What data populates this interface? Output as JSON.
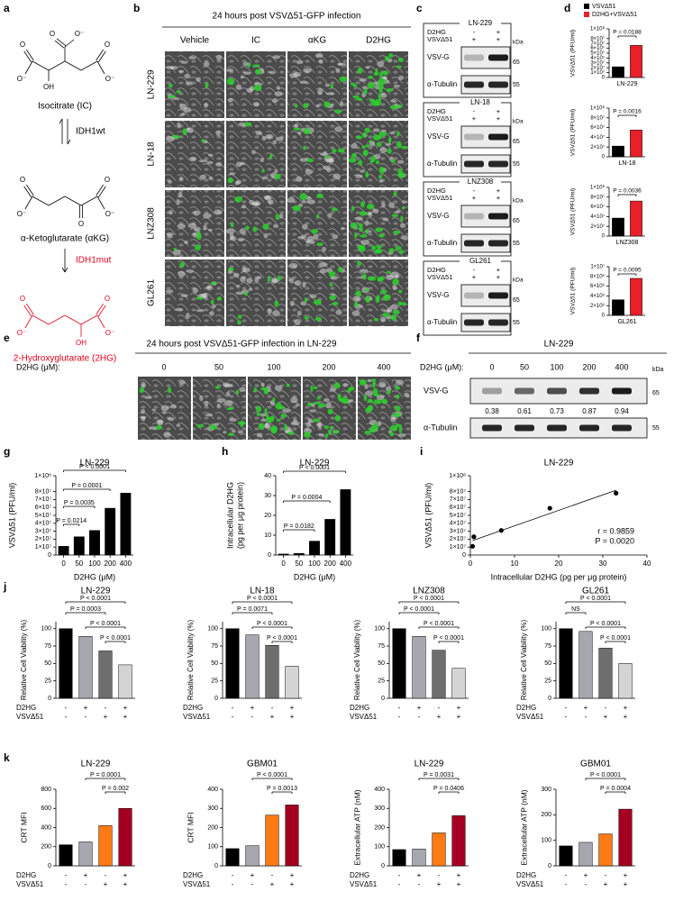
{
  "panel_labels": [
    "a",
    "b",
    "c",
    "d",
    "e",
    "f",
    "g",
    "h",
    "i",
    "j",
    "k"
  ],
  "pathway": {
    "compounds": [
      "Isocitrate (IC)",
      "α-Ketoglutarate (αKG)",
      "2-Hydroxyglutarate (2HG)"
    ],
    "enzymes": [
      "IDH1wt",
      "IDH1mut"
    ],
    "atoms": {
      "o": "O",
      "o_minus": "O⁻",
      "oh": "OH"
    }
  },
  "micrographs": {
    "title": "24 hours post VSVΔ51-GFP infection",
    "columns": [
      "Vehicle",
      "IC",
      "αKG",
      "D2HG"
    ],
    "rows": [
      "LN-229",
      "LN-18",
      "LNZ308",
      "GL261"
    ]
  },
  "blots_c": {
    "cell_lines": [
      "LN-229",
      "LN-18",
      "LNZ308",
      "GL261"
    ],
    "treatments": [
      "D2HG",
      "VSVΔ51"
    ],
    "signs": [
      [
        "-",
        "+"
      ],
      [
        "+",
        "+"
      ]
    ],
    "bands": [
      "VSV-G",
      "α-Tubulin"
    ],
    "kda": "kDa",
    "markers": [
      "65",
      "55"
    ]
  },
  "legend_d": [
    {
      "name": "VSVΔ51",
      "color": "#000000"
    },
    {
      "name": "D2HG+VSVΔ51",
      "color": "#e8202a"
    }
  ],
  "dose_images": {
    "title": "24 hours post VSVΔ51-GFP infection in LN-229",
    "dose_label": "D2HG (μM):",
    "doses": [
      0,
      50,
      100,
      200,
      400
    ]
  },
  "blot_f": {
    "title": "LN-229",
    "dose_label": "D2HG (μM):",
    "doses": [
      0,
      50,
      100,
      200,
      400
    ],
    "kda": "kDa",
    "bands": [
      "VSV-G",
      "α-Tubulin"
    ],
    "markers": [
      "65",
      "55"
    ],
    "ratios": [
      0.38,
      0.61,
      0.73,
      0.87,
      0.94
    ]
  },
  "chart_data": [
    {
      "type": "bar",
      "xlabel": "LN-229",
      "ylabel": "VSVΔ51 (PFU/ml)",
      "values": [
        22000000,
        66000000
      ],
      "ylim": [
        0,
        100000000
      ],
      "yticks": [
        0,
        {
          "value": 10000000,
          "label": "1×10⁷"
        },
        {
          "value": 20000000,
          "label": "2×10⁷"
        },
        {
          "value": 30000000,
          "label": "3×10⁷"
        },
        {
          "value": 40000000,
          "label": "4×10⁷"
        },
        {
          "value": 50000000,
          "label": "5×10⁷"
        },
        {
          "value": 60000000,
          "label": "6×10⁷"
        },
        {
          "value": 70000000,
          "label": "7×10⁷"
        },
        {
          "value": 80000000,
          "label": "8×10⁷"
        },
        {
          "value": 100000000,
          "label": "1×10⁸"
        }
      ],
      "comparisons": [
        "P = 0.0188"
      ]
    },
    {
      "type": "bar",
      "xlabel": "LN-18",
      "ylabel": "VSVΔ51 (PFU/ml)",
      "values": [
        22000000,
        55000000
      ],
      "ylim": [
        0,
        100000000
      ],
      "yticks": [
        0,
        {
          "value": 20000000,
          "label": "2×10⁷"
        },
        {
          "value": 40000000,
          "label": "4×10⁷"
        },
        {
          "value": 60000000,
          "label": "6×10⁷"
        },
        {
          "value": 80000000,
          "label": "8×10⁷"
        },
        {
          "value": 100000000,
          "label": "1×10⁸"
        }
      ],
      "comparisons": [
        "P = 0.0016"
      ]
    },
    {
      "type": "bar",
      "xlabel": "LNZ308",
      "ylabel": "VSVΔ51 (PFU/ml)",
      "values": [
        37000000,
        72000000
      ],
      "ylim": [
        0,
        100000000
      ],
      "yticks": [
        0,
        {
          "value": 20000000,
          "label": "2×10⁷"
        },
        {
          "value": 40000000,
          "label": "4×10⁷"
        },
        {
          "value": 60000000,
          "label": "6×10⁷"
        },
        {
          "value": 80000000,
          "label": "8×10⁷"
        },
        {
          "value": 100000000,
          "label": "1×10⁸"
        }
      ],
      "comparisons": [
        "P = 0.0036"
      ]
    },
    {
      "type": "bar",
      "xlabel": "GL261",
      "ylabel": "VSVΔ51 (PFU/ml)",
      "values": [
        3200000,
        7600000
      ],
      "ylim": [
        0,
        10000000
      ],
      "yticks": [
        0,
        {
          "value": 2000000,
          "label": "2×10⁶"
        },
        {
          "value": 4000000,
          "label": "4×10⁶"
        },
        {
          "value": 6000000,
          "label": "6×10⁶"
        },
        {
          "value": 8000000,
          "label": "8×10⁶"
        },
        {
          "value": 10000000,
          "label": "1×10⁷"
        }
      ],
      "comparisons": [
        "P = 0.0095"
      ]
    },
    {
      "type": "bar",
      "title": "LN-229",
      "ylabel": "VSVΔ51 (PFU/ml)",
      "xlabel": "D2HG (μM)",
      "categories": [
        0,
        50,
        100,
        200,
        400
      ],
      "values": [
        11000000,
        23000000,
        31000000,
        59000000,
        78000000
      ],
      "color": "#000000",
      "ylim": [
        0,
        100000000
      ],
      "yticks": [
        0,
        {
          "value": 10000000,
          "label": "1×10⁷"
        },
        {
          "value": 20000000,
          "label": "2×10⁷"
        },
        {
          "value": 30000000,
          "label": "3×10⁷"
        },
        {
          "value": 40000000,
          "label": "4×10⁷"
        },
        {
          "value": 50000000,
          "label": "5×10⁷"
        },
        {
          "value": 60000000,
          "label": "6×10⁷"
        },
        {
          "value": 70000000,
          "label": "7×10⁷"
        },
        {
          "value": 80000000,
          "label": "8×10⁷"
        },
        {
          "value": 100000000,
          "label": "1×10⁸"
        }
      ],
      "comparisons": [
        "P < 0.0001",
        "P = 0.0001",
        "P = 0.0035",
        "P = 0.0214"
      ]
    },
    {
      "type": "bar",
      "title": "LN-229",
      "ylabel": [
        "Intracellular  D2HG",
        "(pg per μg protein)"
      ],
      "xlabel": "D2HG (μM)",
      "categories": [
        0,
        50,
        100,
        200,
        400
      ],
      "values": [
        0.5,
        0.8,
        7,
        18,
        33
      ],
      "color": "#000000",
      "ylim": [
        0,
        40
      ],
      "yticks": [
        0,
        10,
        20,
        30,
        40
      ],
      "comparisons": [
        "P < 0.0001",
        "P = 0.0004",
        "P = 0.0182"
      ]
    },
    {
      "type": "scatter",
      "title": "LN-229",
      "ylabel": "VSVΔ51 (PFU/ml)",
      "xlabel": "Intracellular D2HG (pg per μg protein)",
      "x": [
        0.5,
        0.8,
        7,
        18,
        33
      ],
      "values": [
        11000000,
        23000000,
        31000000,
        59000000,
        78000000
      ],
      "color": "#000000",
      "xlim": [
        0,
        40
      ],
      "xticks": [
        0,
        10,
        20,
        30,
        40
      ],
      "ylim": [
        0,
        100000000
      ],
      "yticks": [
        0,
        {
          "value": 10000000,
          "label": "1×10⁷"
        },
        {
          "value": 20000000,
          "label": "2×10⁷"
        },
        {
          "value": 30000000,
          "label": "3×10⁷"
        },
        {
          "value": 40000000,
          "label": "4×10⁷"
        },
        {
          "value": 50000000,
          "label": "5×10⁷"
        },
        {
          "value": 60000000,
          "label": "6×10⁷"
        },
        {
          "value": 70000000,
          "label": "7×10⁷"
        },
        {
          "value": 80000000,
          "label": "8×10⁷"
        },
        {
          "value": 100000000,
          "label": "1×10⁸"
        }
      ],
      "annotations": [
        "r = 0.9859",
        "P = 0.0020"
      ]
    },
    {
      "type": "bar",
      "title": "LN-229",
      "ylabel": "Relative Cell Viability (%)",
      "values": [
        100,
        89,
        68,
        48
      ],
      "colors": [
        "#000000",
        "#a7a7b0",
        "#6e6e6e",
        "#d4d4d4"
      ],
      "ylim": [
        0,
        110
      ],
      "yticks": [
        0,
        25,
        50,
        75,
        100
      ],
      "condition_rows": [
        {
          "name": "D2HG",
          "signs": [
            "-",
            "+",
            "-",
            "+"
          ]
        },
        {
          "name": "VSVΔ51",
          "signs": [
            "-",
            "-",
            "+",
            "+"
          ]
        }
      ],
      "comparisons": [
        "P < 0.0001",
        "P = 0.0003",
        "P < 0.0001",
        "P < 0.0001"
      ]
    },
    {
      "type": "bar",
      "title": "LN-18",
      "ylabel": "Relative Cell Viability (%)",
      "values": [
        100,
        91,
        76,
        46
      ],
      "colors": [
        "#000000",
        "#a7a7b0",
        "#6e6e6e",
        "#d4d4d4"
      ],
      "ylim": [
        0,
        110
      ],
      "yticks": [
        0,
        25,
        50,
        75,
        100
      ],
      "condition_rows": [
        {
          "name": "D2HG",
          "signs": [
            "-",
            "+",
            "-",
            "+"
          ]
        },
        {
          "name": "VSVΔ51",
          "signs": [
            "-",
            "-",
            "+",
            "+"
          ]
        }
      ],
      "comparisons": [
        "P < 0.0001",
        "P = 0.0071",
        "P < 0.0001",
        "P < 0.0001"
      ]
    },
    {
      "type": "bar",
      "title": "LNZ308",
      "ylabel": "Relative Cell Viability (%)",
      "values": [
        100,
        89,
        69,
        43
      ],
      "colors": [
        "#000000",
        "#a7a7b0",
        "#6e6e6e",
        "#d4d4d4"
      ],
      "ylim": [
        0,
        110
      ],
      "yticks": [
        0,
        25,
        50,
        75,
        100
      ],
      "condition_rows": [
        {
          "name": "D2HG",
          "signs": [
            "-",
            "+",
            "-",
            "+"
          ]
        },
        {
          "name": "VSVΔ51",
          "signs": [
            "-",
            "-",
            "+",
            "+"
          ]
        }
      ],
      "comparisons": [
        "P < 0.0001",
        "P < 0.0001",
        "P < 0.0001",
        "P < 0.0001"
      ]
    },
    {
      "type": "bar",
      "title": "GL261",
      "ylabel": "Relative Cell Viability (%)",
      "values": [
        100,
        96,
        72,
        50
      ],
      "colors": [
        "#000000",
        "#a7a7b0",
        "#6e6e6e",
        "#d4d4d4"
      ],
      "ylim": [
        0,
        110
      ],
      "yticks": [
        0,
        25,
        50,
        75,
        100
      ],
      "condition_rows": [
        {
          "name": "D2HG",
          "signs": [
            "-",
            "+",
            "-",
            "+"
          ]
        },
        {
          "name": "VSVΔ51",
          "signs": [
            "-",
            "-",
            "+",
            "+"
          ]
        }
      ],
      "comparisons": [
        "P < 0.0001",
        "NS",
        "P < 0.0001",
        "P < 0.0001"
      ]
    },
    {
      "type": "bar",
      "title": "LN-229",
      "ylabel": "CRT MFI",
      "values": [
        220,
        250,
        420,
        600
      ],
      "colors": [
        "#000000",
        "#a7a7b0",
        "#ff7a14",
        "#a50021"
      ],
      "ylim": [
        0,
        800
      ],
      "yticks": [
        0,
        200,
        400,
        600,
        800
      ],
      "condition_rows": [
        {
          "name": "D2HG",
          "signs": [
            "-",
            "+",
            "-",
            "+"
          ]
        },
        {
          "name": "VSVΔ51",
          "signs": [
            "-",
            "-",
            "+",
            "+"
          ]
        }
      ],
      "comparisons": [
        "P = 0.0001",
        "P = 0.002"
      ]
    },
    {
      "type": "bar",
      "title": "GBM01",
      "ylabel": "CRT MFI",
      "values": [
        90,
        105,
        265,
        318
      ],
      "colors": [
        "#000000",
        "#a7a7b0",
        "#ff7a14",
        "#a50021"
      ],
      "ylim": [
        0,
        400
      ],
      "yticks": [
        0,
        100,
        200,
        300,
        400
      ],
      "condition_rows": [
        {
          "name": "D2HG",
          "signs": [
            "-",
            "+",
            "-",
            "+"
          ]
        },
        {
          "name": "VSVΔ51",
          "signs": [
            "-",
            "-",
            "+",
            "+"
          ]
        }
      ],
      "comparisons": [
        "P < 0.0001",
        "P = 0.0013"
      ]
    },
    {
      "type": "bar",
      "title": "LN-229",
      "ylabel": "Extracellular ATP (nM)",
      "values": [
        85,
        88,
        172,
        262
      ],
      "colors": [
        "#000000",
        "#a7a7b0",
        "#ff7a14",
        "#a50021"
      ],
      "ylim": [
        0,
        400
      ],
      "yticks": [
        0,
        100,
        200,
        300,
        400
      ],
      "condition_rows": [
        {
          "name": "D2HG",
          "signs": [
            "-",
            "+",
            "-",
            "+"
          ]
        },
        {
          "name": "VSVΔ51",
          "signs": [
            "-",
            "-",
            "+",
            "+"
          ]
        }
      ],
      "comparisons": [
        "P = 0.0031",
        "P = 0.0406"
      ]
    },
    {
      "type": "bar",
      "title": "GBM01",
      "ylabel": "Extracellular ATP (nM)",
      "values": [
        78,
        92,
        125,
        222
      ],
      "colors": [
        "#000000",
        "#a7a7b0",
        "#ff7a14",
        "#a50021"
      ],
      "ylim": [
        0,
        300
      ],
      "yticks": [
        0,
        100,
        200,
        300
      ],
      "condition_rows": [
        {
          "name": "D2HG",
          "signs": [
            "-",
            "+",
            "-",
            "+"
          ]
        },
        {
          "name": "VSVΔ51",
          "signs": [
            "-",
            "-",
            "+",
            "+"
          ]
        }
      ],
      "comparisons": [
        "P < 0.0001",
        "P = 0.0004"
      ]
    }
  ]
}
